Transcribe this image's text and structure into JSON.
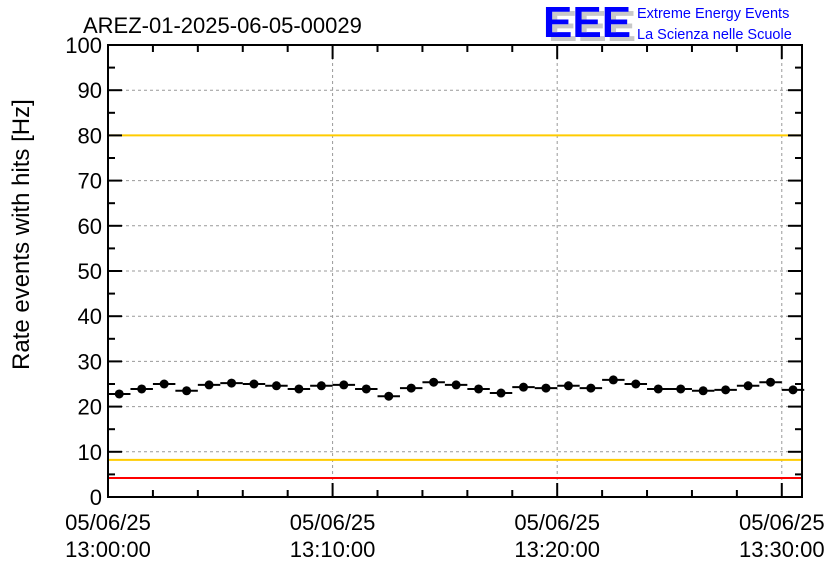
{
  "logo": {
    "letters": "EEE",
    "line1": "Extreme Energy Events",
    "line2": "La Scienza nelle Scuole",
    "color": "#0000ff"
  },
  "chart_data": {
    "type": "scatter",
    "title": "AREZ-01-2025-06-05-00029",
    "ylabel": "Rate events with hits [Hz]",
    "xlabel": "",
    "ylim": [
      0,
      100
    ],
    "xlim_minutes": [
      0,
      30.9
    ],
    "yticks": [
      "0",
      "10",
      "20",
      "30",
      "40",
      "50",
      "60",
      "70",
      "80",
      "90",
      "100"
    ],
    "xticks": [
      {
        "minute": 0,
        "date": "05/06/25",
        "time": "13:00:00"
      },
      {
        "minute": 10,
        "date": "05/06/25",
        "time": "13:10:00"
      },
      {
        "minute": 20,
        "date": "05/06/25",
        "time": "13:20:00"
      },
      {
        "minute": 30,
        "date": "05/06/25",
        "time": "13:30:00"
      }
    ],
    "grid": true,
    "bin_width_minutes": 1,
    "x_minutes": [
      0.5,
      1.5,
      2.5,
      3.5,
      4.5,
      5.5,
      6.5,
      7.5,
      8.5,
      9.5,
      10.5,
      11.5,
      12.5,
      13.5,
      14.5,
      15.5,
      16.5,
      17.5,
      18.5,
      19.5,
      20.5,
      21.5,
      22.5,
      23.5,
      24.5,
      25.5,
      26.5,
      27.5,
      28.5,
      29.5,
      30.5
    ],
    "values": [
      22.8,
      23.9,
      25.0,
      23.5,
      24.8,
      25.2,
      25.0,
      24.6,
      23.9,
      24.6,
      24.8,
      23.9,
      22.3,
      24.1,
      25.4,
      24.8,
      23.9,
      23.0,
      24.3,
      24.1,
      24.6,
      24.1,
      25.9,
      25.0,
      23.9,
      23.9,
      23.5,
      23.7,
      24.6,
      25.4,
      23.7
    ],
    "reference_lines": [
      {
        "value": 100,
        "color": "#ff0000"
      },
      {
        "value": 80,
        "color": "#ffcc00"
      },
      {
        "value": 8.2,
        "color": "#ffcc00"
      },
      {
        "value": 4.2,
        "color": "#ff0000"
      }
    ]
  }
}
